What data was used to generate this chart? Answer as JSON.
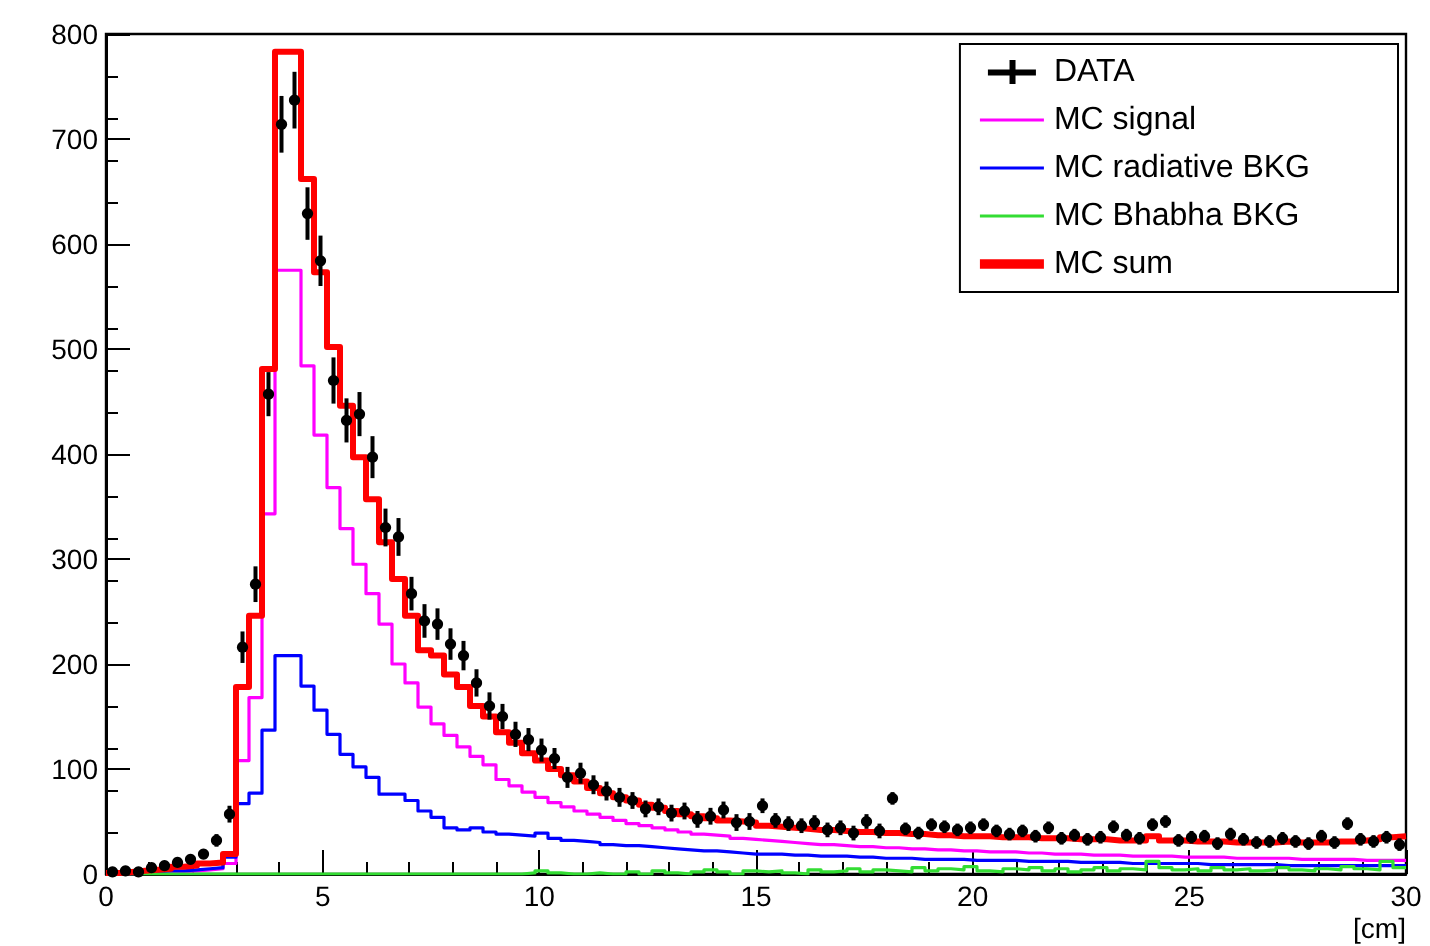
{
  "chart_data": {
    "type": "histogram",
    "xlabel": "[cm]",
    "xlim": [
      0,
      30
    ],
    "xticks": [
      0,
      5,
      10,
      15,
      20,
      25,
      30
    ],
    "ylim": [
      0,
      800
    ],
    "yticks": [
      0,
      100,
      200,
      300,
      400,
      500,
      600,
      700,
      800
    ],
    "grid": false,
    "legend": "top right",
    "bins": [
      0,
      0.3,
      0.6,
      0.9,
      1.2,
      1.5,
      1.8,
      2.1,
      2.4,
      2.7,
      3,
      3.3,
      3.6,
      3.9,
      4.2,
      4.5,
      4.8,
      5.1,
      5.4,
      5.7,
      6,
      6.3,
      6.6,
      6.9,
      7.2,
      7.5,
      7.8,
      8.1,
      8.4,
      8.7,
      9,
      9.3,
      9.6,
      9.9,
      10.2,
      10.5,
      10.8,
      11.1,
      11.4,
      11.7,
      12,
      12.3,
      12.6,
      12.9,
      13.2,
      13.5,
      13.8,
      14.1,
      14.4,
      14.7,
      15,
      15.3,
      15.6,
      15.9,
      16.2,
      16.5,
      16.8,
      17.1,
      17.4,
      17.7,
      18,
      18.3,
      18.6,
      18.9,
      19.2,
      19.5,
      19.8,
      20.1,
      20.4,
      20.7,
      21,
      21.3,
      21.6,
      21.9,
      22.2,
      22.5,
      22.8,
      23.1,
      23.4,
      23.7,
      24,
      24.3,
      24.6,
      24.9,
      25.2,
      25.5,
      25.8,
      26.1,
      26.4,
      26.7,
      27,
      27.3,
      27.6,
      27.9,
      28.2,
      28.5,
      28.8,
      29.1,
      29.4,
      29.7,
      30
    ],
    "series": [
      {
        "name": "DATA",
        "type": "scatter",
        "color": "#000000",
        "marker": "circle",
        "x": [
          0.15,
          0.45,
          0.75,
          1.05,
          1.35,
          1.65,
          1.95,
          2.25,
          2.55,
          2.85,
          3.15,
          3.45,
          3.75,
          4.05,
          4.35,
          4.65,
          4.95,
          5.25,
          5.55,
          5.85,
          6.15,
          6.45,
          6.75,
          7.05,
          7.35,
          7.65,
          7.95,
          8.25,
          8.55,
          8.85,
          9.15,
          9.45,
          9.75,
          10.05,
          10.35,
          10.65,
          10.95,
          11.25,
          11.55,
          11.85,
          12.15,
          12.45,
          12.75,
          13.05,
          13.35,
          13.65,
          13.95,
          14.25,
          14.55,
          14.85,
          15.15,
          15.45,
          15.75,
          16.05,
          16.35,
          16.65,
          16.95,
          17.25,
          17.55,
          17.85,
          18.15,
          18.45,
          18.75,
          19.05,
          19.35,
          19.65,
          19.95,
          20.25,
          20.55,
          20.85,
          21.15,
          21.45,
          21.75,
          22.05,
          22.35,
          22.65,
          22.95,
          23.25,
          23.55,
          23.85,
          24.15,
          24.45,
          24.75,
          25.05,
          25.35,
          25.65,
          25.95,
          26.25,
          26.55,
          26.85,
          27.15,
          27.45,
          27.75,
          28.05,
          28.35,
          28.65,
          28.95,
          29.25,
          29.55,
          29.85
        ],
        "values": [
          2,
          3,
          2,
          6,
          8,
          11,
          14,
          19,
          32,
          57,
          216,
          276,
          457,
          714,
          737,
          629,
          584,
          470,
          432,
          438,
          397,
          330,
          321,
          267,
          241,
          238,
          219,
          208,
          182,
          160,
          150,
          133,
          128,
          118,
          110,
          92,
          96,
          85,
          79,
          73,
          70,
          62,
          64,
          58,
          60,
          52,
          55,
          61,
          49,
          50,
          65,
          51,
          48,
          46,
          49,
          42,
          44,
          39,
          50,
          41,
          72,
          43,
          39,
          47,
          45,
          42,
          44,
          47,
          41,
          38,
          41,
          36,
          44,
          34,
          37,
          33,
          35,
          45,
          37,
          34,
          47,
          50,
          32,
          35,
          36,
          29,
          38,
          33,
          30,
          31,
          34,
          31,
          29,
          36,
          30,
          48,
          33,
          31,
          35,
          28
        ],
        "errors": [
          1,
          2,
          1,
          2,
          3,
          3,
          4,
          4,
          6,
          8,
          15,
          17,
          21,
          27,
          27,
          25,
          24,
          22,
          21,
          21,
          20,
          18,
          18,
          16,
          16,
          15,
          15,
          14,
          13,
          13,
          12,
          12,
          11,
          11,
          10,
          10,
          10,
          9,
          9,
          9,
          8,
          8,
          8,
          8,
          8,
          8,
          8,
          8,
          8,
          8,
          7,
          7,
          7,
          7,
          7,
          7,
          7,
          7,
          7,
          7,
          6,
          6,
          6,
          6,
          6,
          6,
          6,
          6,
          6,
          6,
          6,
          6,
          6,
          6,
          6,
          6,
          6,
          6,
          6,
          6,
          6,
          6,
          6,
          6,
          6,
          6,
          6,
          6,
          6,
          6,
          6,
          6,
          6,
          6,
          6,
          6,
          6,
          6,
          6,
          6
        ]
      },
      {
        "name": "MC signal",
        "color": "#ff00ff",
        "values": [
          0,
          0,
          1,
          1,
          2,
          2,
          3,
          4,
          5,
          10,
          108,
          168,
          343,
          575,
          575,
          484,
          418,
          368,
          329,
          295,
          267,
          238,
          200,
          182,
          159,
          143,
          132,
          121,
          112,
          104,
          90,
          84,
          78,
          73,
          68,
          64,
          60,
          57,
          54,
          51,
          48,
          46,
          44,
          42,
          40,
          38,
          37,
          36,
          34,
          33,
          32,
          31,
          30,
          29,
          28,
          28,
          27,
          26,
          26,
          25,
          25,
          24,
          24,
          23,
          23,
          22,
          22,
          21,
          21,
          21,
          20,
          20,
          19,
          19,
          19,
          18,
          18,
          18,
          17,
          17,
          17,
          17,
          16,
          16,
          16,
          16,
          15,
          15,
          15,
          15,
          15,
          14,
          14,
          14,
          14,
          14,
          13,
          13,
          13,
          13
        ]
      },
      {
        "name": "MC radiative BKG",
        "color": "#0000ff",
        "values": [
          1,
          1,
          2,
          2,
          3,
          3,
          4,
          5,
          6,
          16,
          67,
          77,
          137,
          208,
          208,
          179,
          156,
          133,
          114,
          102,
          92,
          76,
          76,
          70,
          60,
          54,
          44,
          42,
          44,
          40,
          38,
          37,
          36,
          39,
          34,
          32,
          31,
          30,
          28,
          27,
          27,
          26,
          25,
          24,
          23,
          22,
          22,
          21,
          20,
          19,
          19,
          19,
          18,
          18,
          17,
          17,
          17,
          16,
          16,
          15,
          15,
          15,
          14,
          14,
          14,
          14,
          13,
          13,
          13,
          13,
          12,
          12,
          12,
          12,
          11,
          11,
          11,
          11,
          10,
          10,
          10,
          10,
          10,
          10,
          9,
          9,
          9,
          9,
          9,
          9,
          8,
          8,
          8,
          8,
          8,
          8,
          8,
          8,
          8,
          8
        ]
      },
      {
        "name": "MC Bhabha BKG",
        "color": "#33dd33",
        "values": [
          0,
          0,
          0,
          0,
          0,
          0,
          0,
          0,
          0,
          0,
          0,
          0,
          0,
          0,
          0,
          0,
          0,
          0,
          0,
          0,
          0,
          0,
          0,
          0,
          0,
          0,
          0,
          0,
          0,
          0,
          0,
          0,
          1,
          3,
          1,
          0,
          0,
          1,
          0,
          0,
          2,
          0,
          3,
          1,
          0,
          2,
          4,
          2,
          0,
          3,
          2,
          3,
          1,
          0,
          4,
          2,
          3,
          5,
          2,
          4,
          3,
          2,
          6,
          3,
          5,
          4,
          7,
          3,
          2,
          5,
          4,
          6,
          3,
          5,
          2,
          4,
          6,
          3,
          5,
          4,
          12,
          6,
          4,
          5,
          3,
          6,
          4,
          5,
          3,
          4,
          6,
          4,
          3,
          5,
          4,
          7,
          5,
          4,
          12,
          6
        ]
      },
      {
        "name": "MC sum",
        "color": "#ff0000",
        "values": [
          1,
          2,
          3,
          4,
          5,
          7,
          8,
          10,
          11,
          19,
          178,
          246,
          481,
          783,
          783,
          662,
          573,
          502,
          446,
          397,
          357,
          316,
          281,
          246,
          213,
          208,
          190,
          178,
          160,
          150,
          135,
          125,
          115,
          108,
          100,
          94,
          88,
          82,
          77,
          73,
          70,
          66,
          63,
          60,
          57,
          55,
          53,
          51,
          50,
          49,
          46,
          45,
          44,
          43,
          42,
          42,
          41,
          40,
          40,
          39,
          39,
          38,
          38,
          37,
          37,
          36,
          36,
          36,
          35,
          35,
          35,
          34,
          34,
          34,
          33,
          33,
          33,
          32,
          32,
          32,
          36,
          32,
          32,
          31,
          31,
          31,
          30,
          30,
          30,
          30,
          31,
          30,
          30,
          30,
          31,
          31,
          32,
          33,
          35,
          36
        ]
      }
    ]
  }
}
